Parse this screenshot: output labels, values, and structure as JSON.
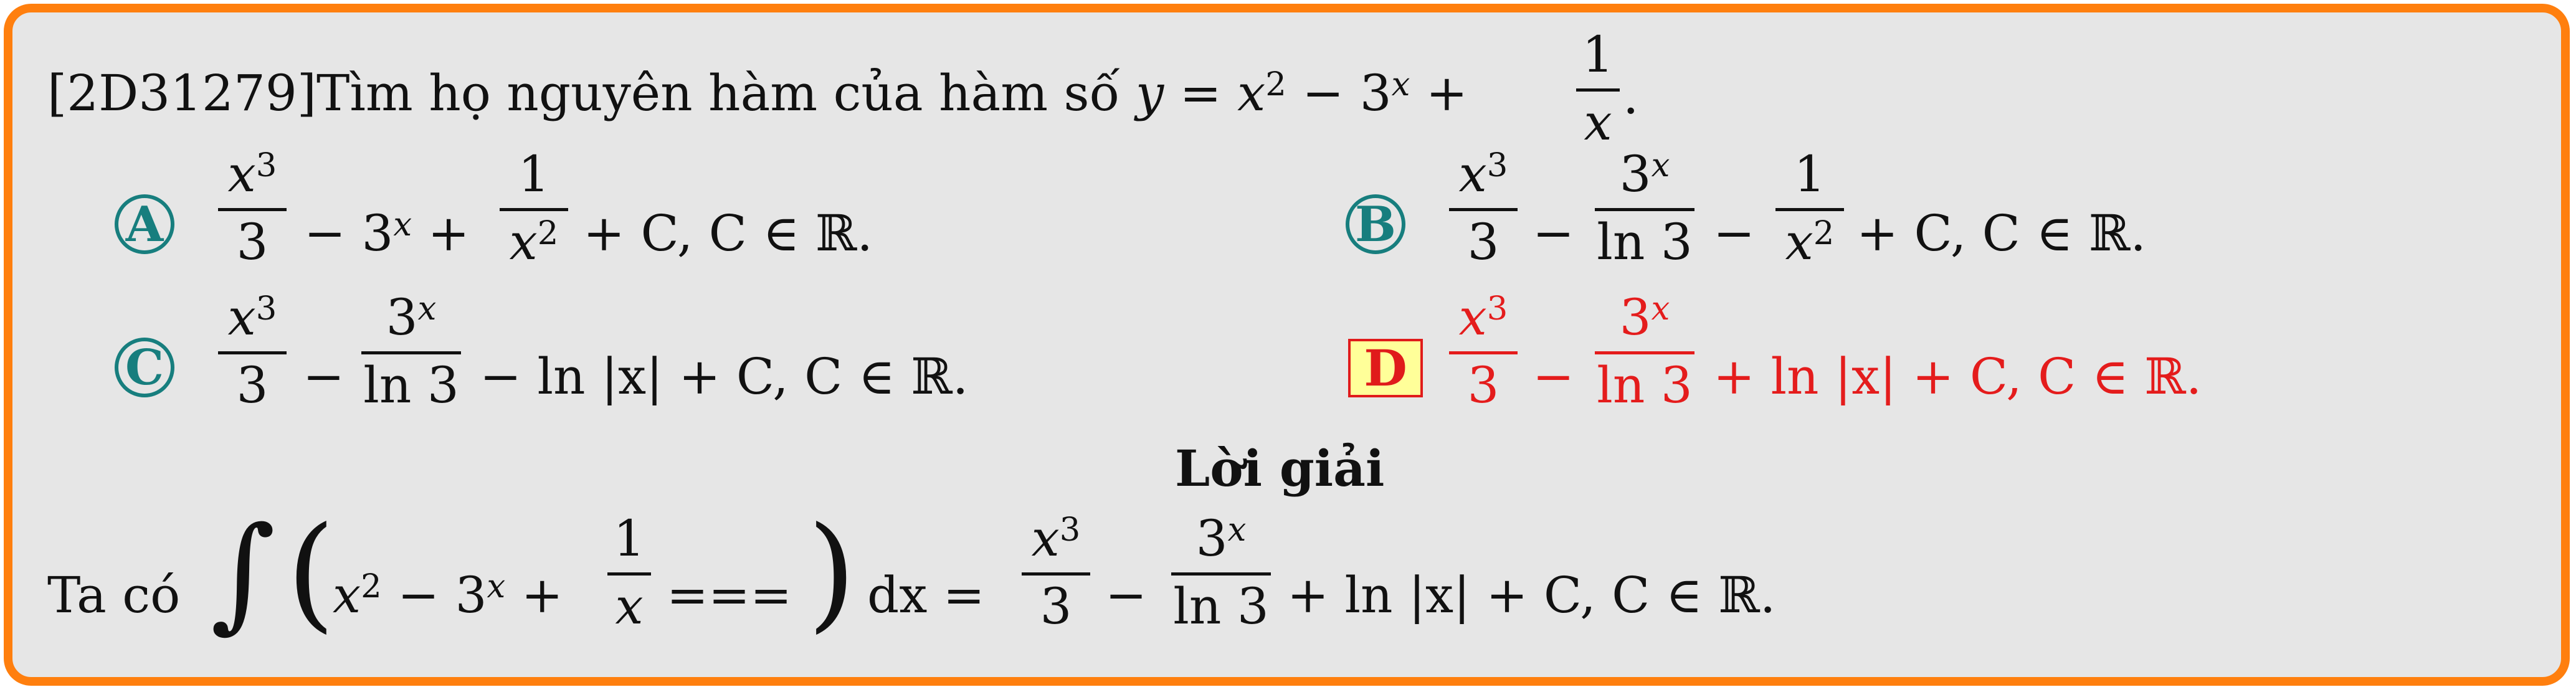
{
  "question": {
    "code": "[2D31279]",
    "text": "Tìm họ nguyên hàm của hàm số",
    "y": "y",
    "eq": "=",
    "x": "x",
    "exp2": "2",
    "minus": "−",
    "three": "3",
    "expx": "x",
    "plus": "+",
    "one": "1",
    "period": "."
  },
  "options": {
    "A": {
      "label": "A",
      "t1_num": "x",
      "t1_exp": "3",
      "t1_den": "3",
      "t2": "− 3",
      "t2_exp": "x",
      "t2_plus": "+",
      "t3_num": "1",
      "t3_den": "x",
      "t3_exp": "2",
      "tail": "+ C, C ∈ ℝ."
    },
    "B": {
      "label": "B",
      "t1_num": "x",
      "t1_exp": "3",
      "t1_den": "3",
      "minus1": "−",
      "t2_num": "3",
      "t2_exp": "x",
      "t2_den": "ln 3",
      "minus2": "−",
      "t3_num": "1",
      "t3_den": "x",
      "t3_exp": "2",
      "tail": "+ C, C ∈ ℝ."
    },
    "C": {
      "label": "C",
      "t1_num": "x",
      "t1_exp": "3",
      "t1_den": "3",
      "minus1": "−",
      "t2_num": "3",
      "t2_exp": "x",
      "t2_den": "ln 3",
      "tail": "− ln |x| + C, C ∈ ℝ."
    },
    "D": {
      "label": "D",
      "t1_num": "x",
      "t1_exp": "3",
      "t1_den": "3",
      "minus1": "−",
      "t2_num": "3",
      "t2_exp": "x",
      "t2_den": "ln 3",
      "tail": "+ ln |x| + C, C ∈ ℝ."
    }
  },
  "solution": {
    "heading": "Lời giải",
    "intro": "Ta có",
    "integral": "∫",
    "lparen": "(",
    "rparen": ")",
    "inner_a": "x",
    "inner_a_exp": "2",
    "inner_b": "− 3",
    "inner_b_exp": "x",
    "inner_plus": "+",
    "inner_frac_num": "1",
    "inner_frac_den": "x",
    "inner_eq": "===",
    "dx": "dx =",
    "r1_num": "x",
    "r1_exp": "3",
    "r1_den": "3",
    "minus": "−",
    "r2_num": "3",
    "r2_exp": "x",
    "r2_den": "ln 3",
    "tail": "+ ln |x| + C, C ∈ ℝ."
  },
  "colors": {
    "border": "#ff7f0e",
    "background": "#e6e6e6",
    "circle": "#177e7e",
    "answer": "#e41c1c",
    "answer_box": "#ffff99"
  }
}
